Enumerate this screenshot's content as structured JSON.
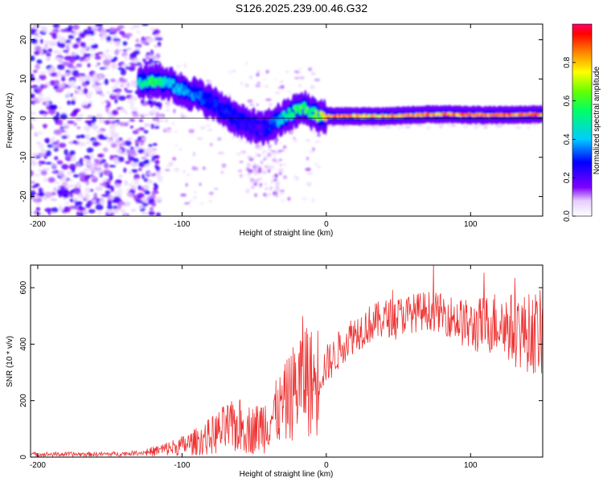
{
  "title": "S126.2025.239.00.46.G32",
  "chart_data": [
    {
      "type": "heatmap",
      "xlabel": "Height of straight line (km)",
      "ylabel": "Frequency (Hz)",
      "xlim": [
        -205,
        150
      ],
      "ylim": [
        -25,
        24
      ],
      "xticks": [
        -200,
        -100,
        0,
        100
      ],
      "yticks": [
        -20,
        -10,
        0,
        10,
        20
      ],
      "colorbar": {
        "label": "Normalized spectral amplitude",
        "range": [
          0,
          1
        ],
        "ticks": [
          0.0,
          0.2,
          0.4,
          0.6,
          0.8
        ]
      },
      "ridge": {
        "x": [
          -130,
          -120,
          -110,
          -100,
          -90,
          -80,
          -70,
          -60,
          -50,
          -45,
          -40,
          -35,
          -30,
          -25,
          -20,
          -15,
          -10,
          -5,
          0,
          10,
          20,
          40,
          60,
          80,
          100,
          120,
          150
        ],
        "frequency": [
          9,
          9.5,
          9,
          7,
          6,
          4,
          2,
          -1,
          -2,
          -3,
          -2,
          -1,
          0,
          1,
          2,
          2.5,
          1.5,
          0.5,
          0.5,
          0.5,
          0.5,
          0.5,
          0.8,
          1,
          0.8,
          0.8,
          1
        ],
        "amplitude": [
          0.5,
          0.6,
          0.45,
          0.4,
          0.35,
          0.3,
          0.3,
          0.25,
          0.25,
          0.2,
          0.3,
          0.35,
          0.45,
          0.55,
          0.6,
          0.65,
          0.6,
          0.7,
          0.9,
          0.95,
          0.9,
          0.85,
          0.9,
          0.9,
          0.95,
          0.95,
          0.95
        ]
      }
    },
    {
      "type": "line",
      "xlabel": "Height of straight line (km)",
      "ylabel": "SNR (10 * v/v)",
      "xlim": [
        -205,
        150
      ],
      "ylim": [
        0,
        680
      ],
      "xticks": [
        -200,
        -100,
        0,
        100
      ],
      "yticks": [
        0,
        200,
        400,
        600
      ],
      "color": "#ee3333",
      "series": [
        {
          "x": [
            -205,
            -180,
            -160,
            -140,
            -130,
            -120,
            -110,
            -100,
            -90,
            -80,
            -70,
            -60,
            -50,
            -40,
            -30,
            -20,
            -15,
            -10,
            -5,
            0,
            5,
            10,
            15,
            20,
            30,
            40,
            50,
            60,
            70,
            80,
            90,
            100,
            110,
            120,
            130,
            140,
            150
          ],
          "y": [
            10,
            10,
            10,
            12,
            15,
            20,
            30,
            40,
            55,
            75,
            100,
            110,
            95,
            130,
            180,
            250,
            300,
            260,
            280,
            330,
            350,
            390,
            420,
            440,
            470,
            490,
            500,
            510,
            520,
            510,
            490,
            460,
            470,
            480,
            450,
            440,
            440
          ]
        }
      ]
    }
  ]
}
